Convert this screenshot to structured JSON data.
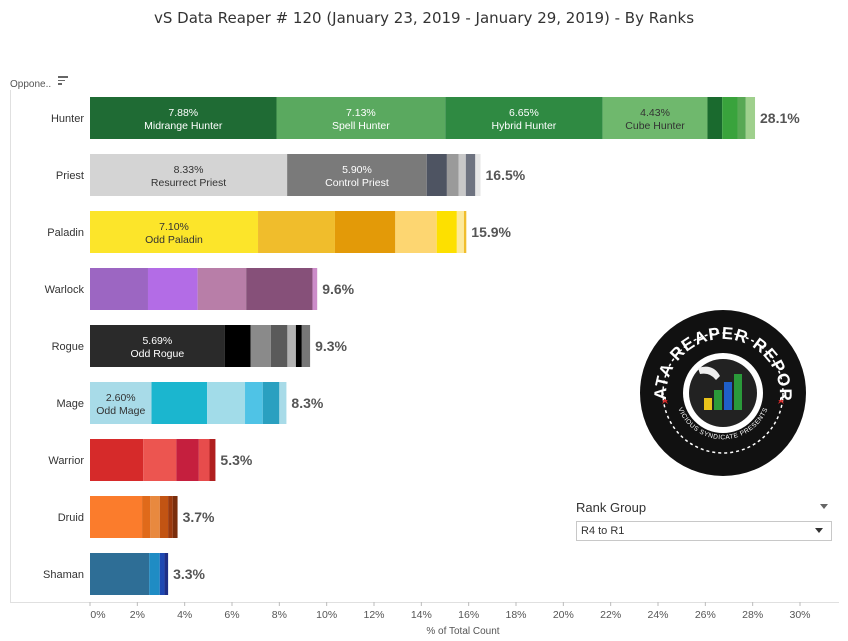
{
  "title": "vS Data Reaper #  120 (January 23, 2019 - January 29, 2019) - By Ranks",
  "opponent_label": "Oppone..",
  "rank_filter": {
    "title": "Rank Group",
    "value": "R4 to R1"
  },
  "logo": {
    "text_top": "DATA REAPER REPORT",
    "text_bottom": "VICIOUS SYNDICATE PRESENTS"
  },
  "chart_data": {
    "type": "bar",
    "orientation": "horizontal",
    "stacked": true,
    "xlabel": "% of Total Count",
    "xlim": [
      0,
      30
    ],
    "x_ticks": [
      "0%",
      "2%",
      "4%",
      "6%",
      "8%",
      "10%",
      "12%",
      "14%",
      "16%",
      "18%",
      "20%",
      "22%",
      "24%",
      "26%",
      "28%",
      "30%"
    ],
    "grid": false,
    "categories": [
      "Hunter",
      "Priest",
      "Paladin",
      "Warlock",
      "Rogue",
      "Mage",
      "Warrior",
      "Druid",
      "Shaman"
    ],
    "totals": [
      "28.1%",
      "16.5%",
      "15.9%",
      "9.6%",
      "9.3%",
      "8.3%",
      "5.3%",
      "3.7%",
      "3.3%"
    ],
    "bars": [
      {
        "class": "Hunter",
        "segments": [
          {
            "value": 7.88,
            "pct": "7.88%",
            "name": "Midrange Hunter",
            "color": "#1f6b34"
          },
          {
            "value": 7.13,
            "pct": "7.13%",
            "name": "Spell Hunter",
            "color": "#5aa95f"
          },
          {
            "value": 6.65,
            "pct": "6.65%",
            "name": "Hybrid Hunter",
            "color": "#2f8a42"
          },
          {
            "value": 4.43,
            "pct": "4.43%",
            "name": "Cube Hunter",
            "color": "#6fb86d"
          },
          {
            "value": 0.62,
            "color": "#1a6a2e"
          },
          {
            "value": 0.65,
            "color": "#39a33c"
          },
          {
            "value": 0.35,
            "color": "#58a854"
          },
          {
            "value": 0.39,
            "color": "#9fd08d"
          }
        ]
      },
      {
        "class": "Priest",
        "segments": [
          {
            "value": 8.33,
            "pct": "8.33%",
            "name": "Resurrect Priest",
            "color": "#d4d4d4"
          },
          {
            "value": 5.9,
            "pct": "5.90%",
            "name": "Control Priest",
            "color": "#7a7a7a"
          },
          {
            "value": 0.85,
            "color": "#4e5462"
          },
          {
            "value": 0.5,
            "color": "#9a9a9a"
          },
          {
            "value": 0.3,
            "color": "#c8c8c8"
          },
          {
            "value": 0.4,
            "color": "#6e7380"
          },
          {
            "value": 0.22,
            "color": "#e6e6e6"
          }
        ]
      },
      {
        "class": "Paladin",
        "segments": [
          {
            "value": 7.1,
            "pct": "7.10%",
            "name": "Odd Paladin",
            "color": "#fce52a"
          },
          {
            "value": 3.25,
            "color": "#f0bd2c"
          },
          {
            "value": 2.55,
            "color": "#e39a08"
          },
          {
            "value": 1.75,
            "color": "#fdd671"
          },
          {
            "value": 0.85,
            "color": "#fde000"
          },
          {
            "value": 0.3,
            "color": "#fde99a"
          },
          {
            "value": 0.1,
            "color": "#f0bd2c"
          }
        ]
      },
      {
        "class": "Warlock",
        "segments": [
          {
            "value": 2.45,
            "color": "#9c66c2"
          },
          {
            "value": 2.1,
            "color": "#b36ce6"
          },
          {
            "value": 2.05,
            "color": "#b87ea8"
          },
          {
            "value": 2.8,
            "color": "#865079"
          },
          {
            "value": 0.2,
            "color": "#cc8cc9"
          }
        ]
      },
      {
        "class": "Rogue",
        "segments": [
          {
            "value": 5.69,
            "pct": "5.69%",
            "name": "Odd Rogue",
            "color": "#2a2a2a"
          },
          {
            "value": 1.1,
            "color": "#000000"
          },
          {
            "value": 0.85,
            "color": "#8a8a8a"
          },
          {
            "value": 0.7,
            "color": "#5a5a5a"
          },
          {
            "value": 0.36,
            "color": "#b2b2b2"
          },
          {
            "value": 0.25,
            "color": "#000000"
          },
          {
            "value": 0.35,
            "color": "#777777"
          }
        ]
      },
      {
        "class": "Mage",
        "segments": [
          {
            "value": 2.6,
            "pct": "2.60%",
            "name": "Odd Mage",
            "color": "#a8dbe8"
          },
          {
            "value": 2.35,
            "color": "#1bb6cf"
          },
          {
            "value": 1.6,
            "color": "#a2dce9"
          },
          {
            "value": 0.75,
            "color": "#4fc3e6"
          },
          {
            "value": 0.7,
            "color": "#2aa0c0"
          },
          {
            "value": 0.3,
            "color": "#a8dbe8"
          }
        ]
      },
      {
        "class": "Warrior",
        "segments": [
          {
            "value": 2.25,
            "color": "#d62a2a"
          },
          {
            "value": 1.4,
            "color": "#ec5550"
          },
          {
            "value": 0.95,
            "color": "#c51f3e"
          },
          {
            "value": 0.45,
            "color": "#e74c4c"
          },
          {
            "value": 0.25,
            "color": "#b01f1f"
          }
        ]
      },
      {
        "class": "Druid",
        "segments": [
          {
            "value": 2.2,
            "color": "#fb7c2c"
          },
          {
            "value": 0.35,
            "color": "#e06a1a"
          },
          {
            "value": 0.4,
            "color": "#e8893f"
          },
          {
            "value": 0.35,
            "color": "#c25413"
          },
          {
            "value": 0.2,
            "color": "#9c3a0e"
          },
          {
            "value": 0.2,
            "color": "#7a2e0d"
          }
        ]
      },
      {
        "class": "Shaman",
        "segments": [
          {
            "value": 2.5,
            "color": "#2e6e96"
          },
          {
            "value": 0.45,
            "color": "#1f8cc4"
          },
          {
            "value": 0.2,
            "color": "#1f48b2"
          },
          {
            "value": 0.15,
            "color": "#1f2f86"
          }
        ]
      }
    ]
  }
}
